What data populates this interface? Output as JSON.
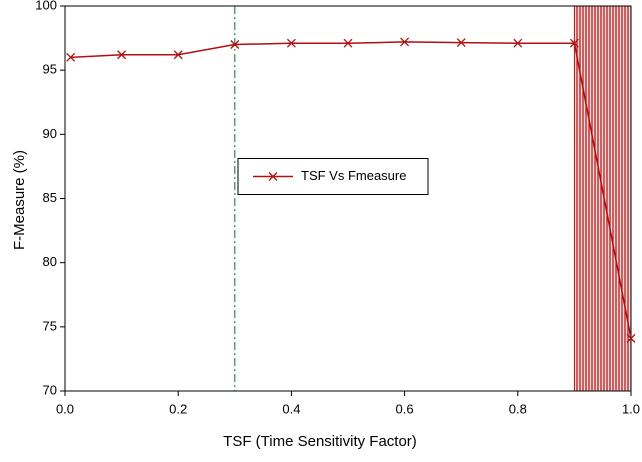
{
  "chart_data": {
    "type": "line",
    "x_label": "TSF (Time Sensitivity Factor)",
    "y_label": "F-Measure (%)",
    "x": [
      0.01,
      0.1,
      0.2,
      0.3,
      0.4,
      0.5,
      0.6,
      0.7,
      0.8,
      0.9,
      1.0
    ],
    "series": [
      {
        "name": "TSF Vs Fmeasure",
        "color": "#b01010",
        "values": [
          96.0,
          96.2,
          96.2,
          97.0,
          97.1,
          97.1,
          97.2,
          97.15,
          97.1,
          97.1,
          74.1
        ]
      }
    ],
    "xlim": [
      0,
      1
    ],
    "xticks": [
      {
        "value": 0,
        "label": "0.0"
      },
      0.2,
      0.4,
      0.6,
      0.8,
      {
        "value": 1,
        "label": "1.0"
      }
    ],
    "ylim": [
      70,
      100
    ],
    "yticks": [
      70,
      75,
      80,
      85,
      90,
      95,
      100
    ],
    "reference_line_x": 0.3,
    "reference_line_color": "#2e8b57",
    "shaded_xrange": [
      0.9,
      1.0
    ],
    "shaded_color": "#b01010",
    "legend": "center",
    "grid": false
  }
}
